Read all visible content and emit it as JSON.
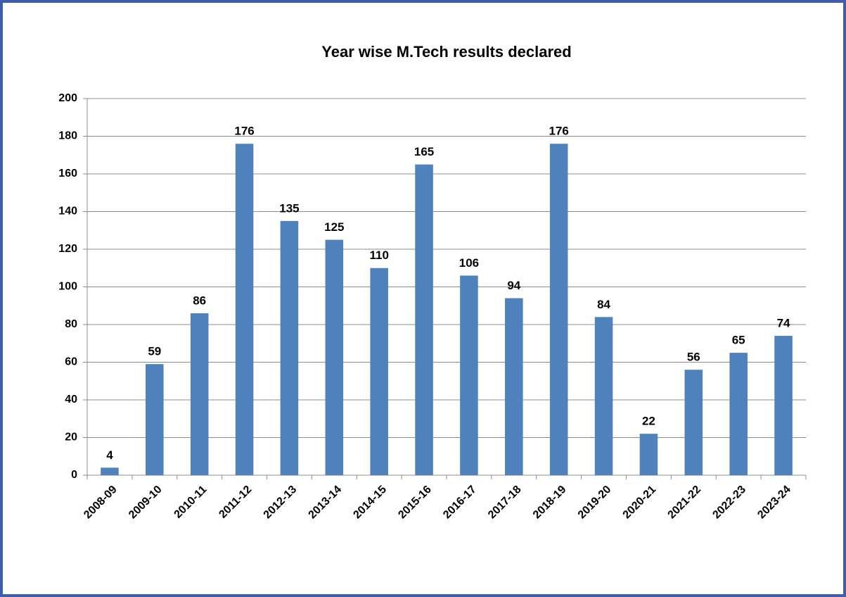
{
  "chart_data": {
    "type": "bar",
    "title": "Year wise M.Tech results declared",
    "categories": [
      "2008-09",
      "2009-10",
      "2010-11",
      "2011-12",
      "2012-13",
      "2013-14",
      "2014-15",
      "2015-16",
      "2016-17",
      "2017-18",
      "2018-19",
      "2019-20",
      "2020-21",
      "2021-22",
      "2022-23",
      "2023-24"
    ],
    "values": [
      4,
      59,
      86,
      176,
      135,
      125,
      110,
      165,
      106,
      94,
      176,
      84,
      22,
      56,
      65,
      74
    ],
    "color": "#4f81bd",
    "ylim": [
      0,
      200
    ],
    "yticks": [
      0,
      20,
      40,
      60,
      80,
      100,
      120,
      140,
      160,
      180,
      200
    ],
    "grid": true
  }
}
